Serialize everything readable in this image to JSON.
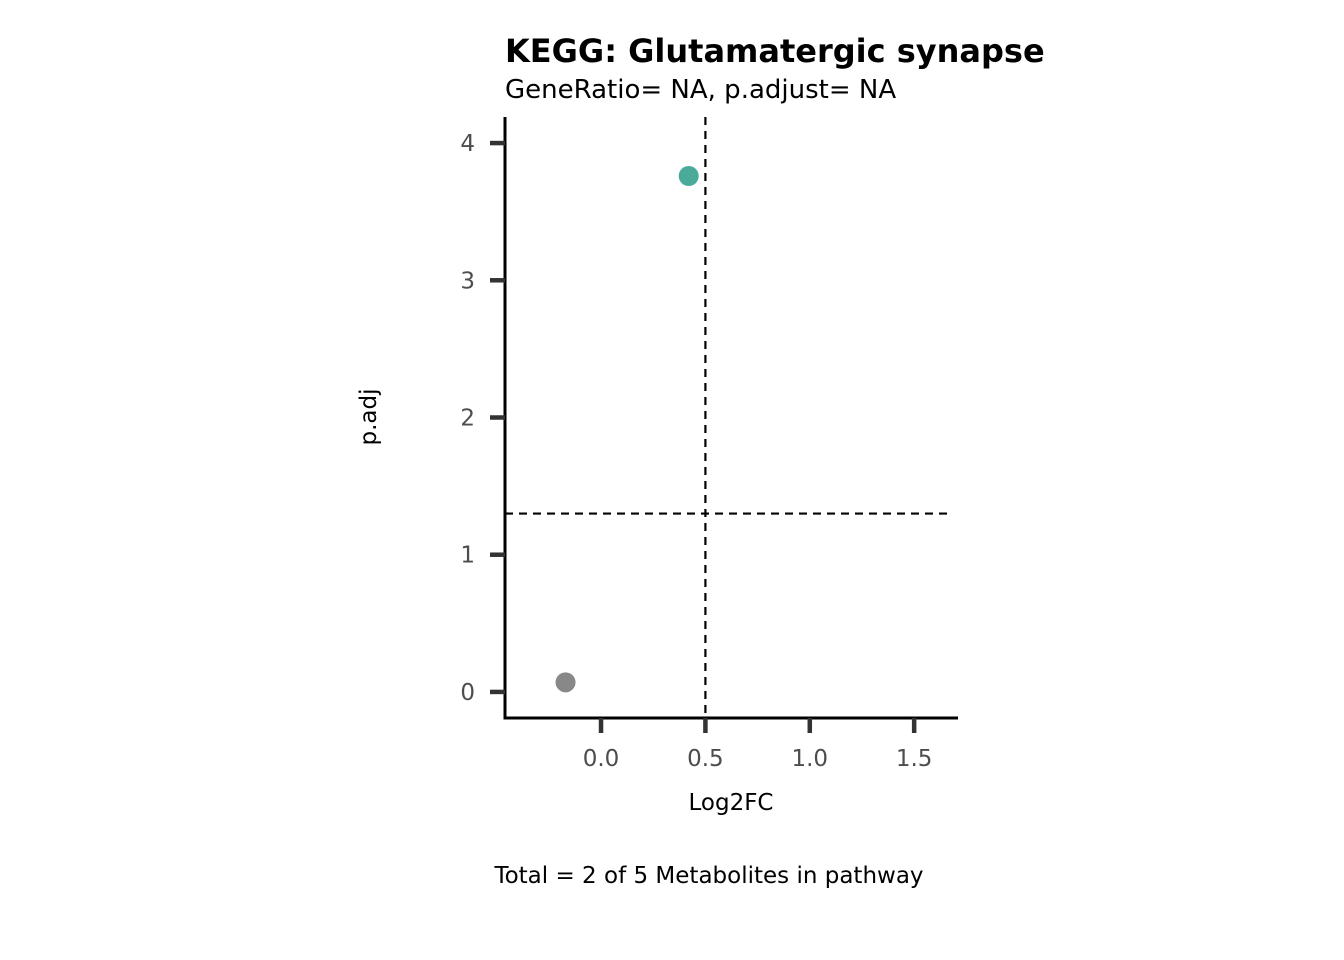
{
  "chart_data": {
    "type": "scatter",
    "title": "KEGG: Glutamatergic synapse",
    "subtitle": "GeneRatio= NA, p.adjust= NA",
    "xlabel": "Log2FC",
    "ylabel": "p.adj",
    "caption": "Total = 2 of 5 Metabolites in pathway",
    "xlim": [
      -0.46,
      1.71
    ],
    "ylim": [
      -0.19,
      4.19
    ],
    "x_ticks": [
      0.0,
      0.5,
      1.0,
      1.5
    ],
    "x_tick_labels": [
      "0.0",
      "0.5",
      "1.0",
      "1.5"
    ],
    "y_ticks": [
      0,
      1,
      2,
      3,
      4
    ],
    "y_tick_labels": [
      "0",
      "1",
      "2",
      "3",
      "4"
    ],
    "reference_lines": {
      "vertical_x": 0.5,
      "horizontal_y": 1.3,
      "style": "dashed"
    },
    "grid": false,
    "legend": "none",
    "points": [
      {
        "x": -0.17,
        "y": 0.07,
        "color": "#888888"
      },
      {
        "x": 0.42,
        "y": 3.76,
        "color": "#4aab9b"
      }
    ]
  }
}
